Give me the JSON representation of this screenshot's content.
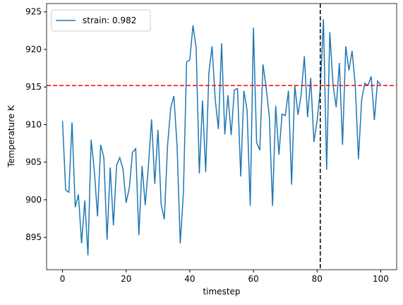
{
  "chart_data": {
    "type": "line",
    "xlabel": "timestep",
    "ylabel": "Temperature K",
    "x": [
      0,
      1,
      2,
      3,
      4,
      5,
      6,
      7,
      8,
      9,
      10,
      11,
      12,
      13,
      14,
      15,
      16,
      17,
      18,
      19,
      20,
      21,
      22,
      23,
      24,
      25,
      26,
      27,
      28,
      29,
      30,
      31,
      32,
      33,
      34,
      35,
      36,
      37,
      38,
      39,
      40,
      41,
      42,
      43,
      44,
      45,
      46,
      47,
      48,
      49,
      50,
      51,
      52,
      53,
      54,
      55,
      56,
      57,
      58,
      59,
      60,
      61,
      62,
      63,
      64,
      65,
      66,
      67,
      68,
      69,
      70,
      71,
      72,
      73,
      74,
      75,
      76,
      77,
      78,
      79,
      80,
      81,
      82,
      83,
      84,
      85,
      86,
      87,
      88,
      89,
      90,
      91,
      92,
      93,
      94,
      95,
      96,
      97,
      98,
      99,
      100
    ],
    "series": [
      {
        "name": "strain: 0.982",
        "color": "#1f77b4",
        "values": [
          910.5,
          901.3,
          901.0,
          910.3,
          899.0,
          900.7,
          894.2,
          899.9,
          892.6,
          908.0,
          903.9,
          897.8,
          907.3,
          905.6,
          894.7,
          904.3,
          896.6,
          904.6,
          905.6,
          904.1,
          899.6,
          901.6,
          906.3,
          906.8,
          895.3,
          904.5,
          899.3,
          904.5,
          910.7,
          902.1,
          909.3,
          899.4,
          897.4,
          907.1,
          912.2,
          913.8,
          907.2,
          894.2,
          901.0,
          918.3,
          918.6,
          923.2,
          920.2,
          903.5,
          913.2,
          903.7,
          916.9,
          920.4,
          913.3,
          909.4,
          920.8,
          908.7,
          913.9,
          908.6,
          914.6,
          914.8,
          903.1,
          914.5,
          911.9,
          899.2,
          922.9,
          907.6,
          906.6,
          918.0,
          914.9,
          911.0,
          899.2,
          912.5,
          906.0,
          911.4,
          911.2,
          914.5,
          902.0,
          915.2,
          911.3,
          914.0,
          919.1,
          911.0,
          916.2,
          907.7,
          910.5,
          914.7,
          924.0,
          904.0,
          922.3,
          915.4,
          912.3,
          918.2,
          907.3,
          920.4,
          917.2,
          919.8,
          915.2,
          905.4,
          913.3,
          915.5,
          915.2,
          916.4,
          910.6,
          915.8,
          915.3
        ]
      }
    ],
    "hline": {
      "value": 915.2,
      "color": "#ff0000"
    },
    "vline": {
      "value": 81,
      "color": "#000000"
    },
    "xlim": [
      -5,
      105
    ],
    "xticks": [
      0,
      20,
      40,
      60,
      80,
      100
    ],
    "ylim": [
      890.7,
      926.1
    ],
    "yticks": [
      895,
      900,
      905,
      910,
      915,
      920,
      925
    ],
    "legend": "upper left"
  }
}
